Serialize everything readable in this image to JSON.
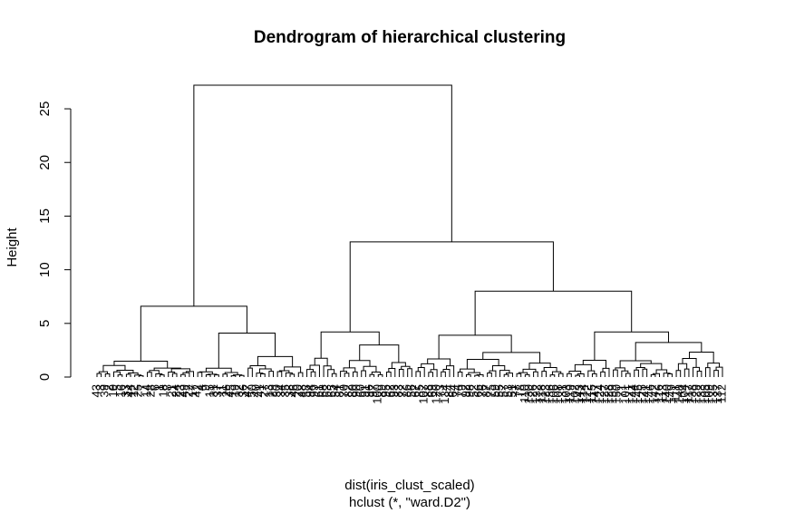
{
  "chart_data": {
    "type": "dendrogram",
    "title": "Dendrogram of hierarchical clustering",
    "ylabel": "Height",
    "xlabel": "dist(iris_clust_scaled)",
    "sublabel": "hclust (*, \"ward.D2\")",
    "ylim": [
      0,
      27.5
    ],
    "y_ticks": [
      0,
      5,
      10,
      15,
      20,
      25
    ],
    "y_tick_labels": [
      "0",
      "5",
      "10",
      "15",
      "20",
      "25"
    ],
    "leaf_count": 150,
    "top_merges": [
      {
        "id": "root",
        "height": 27.2,
        "children": [
          "cluster-1",
          "cluster-2"
        ]
      },
      {
        "id": "cluster-1",
        "height": 6.6,
        "children": [
          "cluster-1a",
          "cluster-1b"
        ]
      },
      {
        "id": "cluster-2",
        "height": 12.6,
        "children": [
          "cluster-2a",
          "cluster-2b"
        ]
      },
      {
        "id": "cluster-1a",
        "height": 1.7,
        "children": []
      },
      {
        "id": "cluster-1b",
        "height": 4.1,
        "children": [
          "cluster-1b-i",
          "cluster-1b-ii"
        ]
      },
      {
        "id": "cluster-1b-i",
        "height": 1.0,
        "children": []
      },
      {
        "id": "cluster-1b-ii",
        "height": 2.0,
        "children": []
      },
      {
        "id": "cluster-2a",
        "height": 4.2,
        "children": [
          "cluster-2a-i",
          "cluster-2a-ii"
        ]
      },
      {
        "id": "cluster-2a-i",
        "height": 2.0,
        "children": []
      },
      {
        "id": "cluster-2a-ii",
        "height": 3.4,
        "children": []
      },
      {
        "id": "cluster-2b",
        "height": 8.0,
        "children": [
          "cluster-2b-i",
          "cluster-2b-ii"
        ]
      },
      {
        "id": "cluster-2b-i",
        "height": 3.9,
        "children": [
          "cluster-2b-i-a",
          "cluster-2b-i-b"
        ]
      },
      {
        "id": "cluster-2b-i-a",
        "height": 2.0,
        "children": []
      },
      {
        "id": "cluster-2b-i-b",
        "height": 2.8,
        "children": []
      },
      {
        "id": "cluster-2b-ii",
        "height": 4.2,
        "children": [
          "cluster-2b-ii-a",
          "cluster-2b-ii-b"
        ]
      },
      {
        "id": "cluster-2b-ii-a",
        "height": 1.6,
        "children": []
      },
      {
        "id": "cluster-2b-ii-b",
        "height": 3.9,
        "children": []
      }
    ],
    "leaf_labels_visible": [
      "43",
      "3",
      "39",
      "2",
      "10",
      "5",
      "16",
      "33",
      "44",
      "12",
      "25",
      "7",
      "14",
      "28",
      "6",
      "1",
      "18",
      "8",
      "21",
      "24",
      "23",
      "49",
      "22",
      "17",
      "42",
      "4",
      "9",
      "15",
      "31",
      "37",
      "11",
      "26",
      "45",
      "19",
      "32",
      "36",
      "47",
      "50",
      "40",
      "41",
      "27",
      "13",
      "29",
      "30",
      "34",
      "35",
      "38",
      "46",
      "20",
      "48",
      "58",
      "94",
      "99",
      "61",
      "68",
      "63",
      "65",
      "54",
      "81",
      "70",
      "82",
      "80",
      "90",
      "60",
      "91",
      "96",
      "97",
      "100",
      "89",
      "95",
      "62",
      "93",
      "83",
      "72",
      "86",
      "56",
      "67",
      "85",
      "107",
      "88",
      "69",
      "120",
      "73",
      "134",
      "84",
      "64",
      "74",
      "79",
      "92",
      "98",
      "52",
      "66",
      "76",
      "87",
      "75",
      "59",
      "55",
      "57",
      "53",
      "51",
      "77",
      "78",
      "110",
      "130",
      "126",
      "132",
      "118",
      "123",
      "136",
      "106",
      "108",
      "131",
      "103",
      "119",
      "102",
      "143",
      "114",
      "122",
      "115",
      "147",
      "124",
      "127",
      "128",
      "139",
      "150",
      "71",
      "101",
      "121",
      "144",
      "145",
      "125",
      "141",
      "146",
      "142",
      "116",
      "113",
      "140",
      "149",
      "111",
      "148",
      "104",
      "117",
      "138",
      "129",
      "133",
      "105",
      "109",
      "135",
      "137",
      "112"
    ]
  }
}
